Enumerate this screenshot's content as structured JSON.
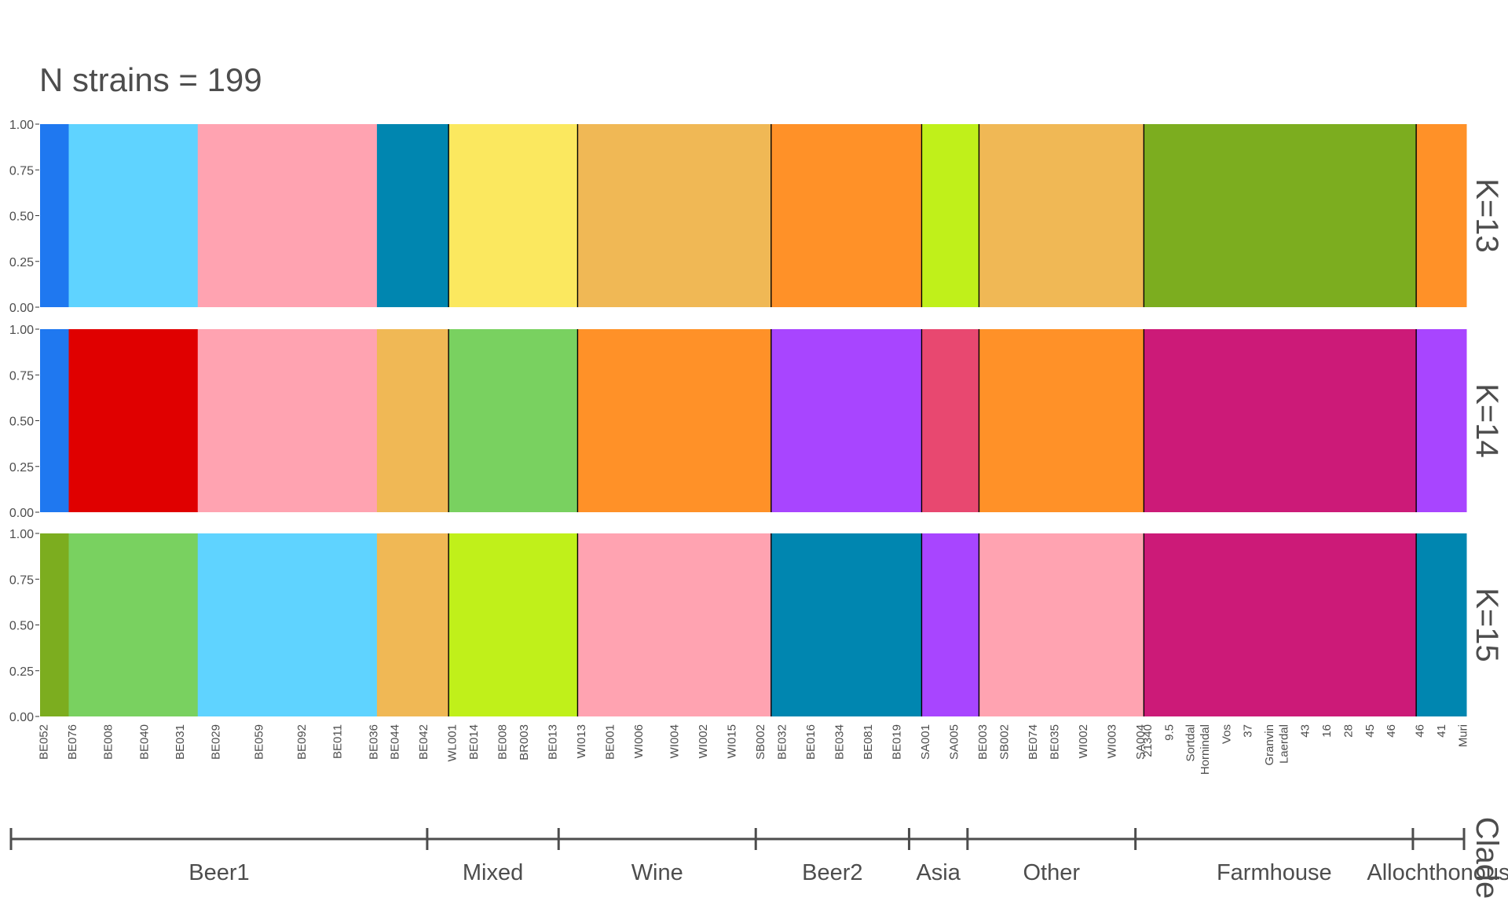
{
  "title": "N strains = 199",
  "chart_data": {
    "type": "bar",
    "subtype": "stacked-admixture",
    "n_strains": 199,
    "ylim": [
      0,
      1
    ],
    "yticks": [
      "0.00",
      "0.25",
      "0.50",
      "0.75",
      "1.00"
    ],
    "panels": [
      {
        "label": "K=13",
        "segments": [
          {
            "from": 0,
            "to": 4,
            "color": "#1f78f0"
          },
          {
            "from": 4,
            "to": 22,
            "color": "#5fd3ff"
          },
          {
            "from": 22,
            "to": 47,
            "color": "#ffa3b1"
          },
          {
            "from": 47,
            "to": 57,
            "color": "#0086b0"
          },
          {
            "from": 57,
            "to": 75,
            "color": "#fbe85f"
          },
          {
            "from": 75,
            "to": 102,
            "color": "#f0b855"
          },
          {
            "from": 102,
            "to": 123,
            "color": "#ff9128"
          },
          {
            "from": 123,
            "to": 131,
            "color": "#c0f01a"
          },
          {
            "from": 131,
            "to": 154,
            "color": "#f0b855"
          },
          {
            "from": 154,
            "to": 192,
            "color": "#7cad1f"
          },
          {
            "from": 192,
            "to": 199,
            "color": "#ff9128"
          }
        ]
      },
      {
        "label": "K=14",
        "segments": [
          {
            "from": 0,
            "to": 4,
            "color": "#1f78f0"
          },
          {
            "from": 4,
            "to": 22,
            "color": "#e00000"
          },
          {
            "from": 22,
            "to": 47,
            "color": "#ffa3b1"
          },
          {
            "from": 47,
            "to": 57,
            "color": "#f0b855"
          },
          {
            "from": 57,
            "to": 75,
            "color": "#79d160"
          },
          {
            "from": 75,
            "to": 102,
            "color": "#ff9128"
          },
          {
            "from": 102,
            "to": 123,
            "color": "#a845ff"
          },
          {
            "from": 123,
            "to": 131,
            "color": "#e84870"
          },
          {
            "from": 131,
            "to": 154,
            "color": "#ff9128"
          },
          {
            "from": 154,
            "to": 192,
            "color": "#cc1a78"
          },
          {
            "from": 192,
            "to": 199,
            "color": "#a845ff"
          }
        ]
      },
      {
        "label": "K=15",
        "segments": [
          {
            "from": 0,
            "to": 4,
            "color": "#7cad1f"
          },
          {
            "from": 4,
            "to": 22,
            "color": "#79d160"
          },
          {
            "from": 22,
            "to": 47,
            "color": "#5fd3ff"
          },
          {
            "from": 47,
            "to": 57,
            "color": "#f0b855"
          },
          {
            "from": 57,
            "to": 75,
            "color": "#c0f01a"
          },
          {
            "from": 75,
            "to": 102,
            "color": "#ffa3b1"
          },
          {
            "from": 102,
            "to": 123,
            "color": "#0086b0"
          },
          {
            "from": 123,
            "to": 131,
            "color": "#a845ff"
          },
          {
            "from": 131,
            "to": 154,
            "color": "#ffa3b1"
          },
          {
            "from": 154,
            "to": 192,
            "color": "#cc1a78"
          },
          {
            "from": 192,
            "to": 199,
            "color": "#0086b0"
          }
        ]
      }
    ],
    "clade_axis_label": "Clade",
    "clades": [
      {
        "name": "Beer1",
        "from": 0,
        "to": 57
      },
      {
        "name": "Mixed",
        "from": 57,
        "to": 75
      },
      {
        "name": "Wine",
        "from": 75,
        "to": 102
      },
      {
        "name": "Beer2",
        "from": 102,
        "to": 123
      },
      {
        "name": "Asia",
        "from": 123,
        "to": 131
      },
      {
        "name": "Other",
        "from": 131,
        "to": 154
      },
      {
        "name": "Farmhouse",
        "from": 154,
        "to": 192
      },
      {
        "name": "Allochthonous",
        "from": 192,
        "to": 199
      }
    ],
    "strain_labels": {
      "0": "BE052",
      "4": "BE076",
      "9": "BE008",
      "14": "BE040",
      "19": "BE031",
      "24": "BE029",
      "30": "BE059",
      "36": "BE092",
      "41": "BE011",
      "46": "BE036",
      "49": "BE044",
      "53": "BE042",
      "57": "WL001",
      "60": "BE014",
      "64": "BE008",
      "67": "BR003",
      "71": "BE013",
      "75": "WI013",
      "79": "BE001",
      "83": "WI006",
      "88": "WI004",
      "92": "WI002",
      "96": "WI015",
      "100": "SB002",
      "103": "BE032",
      "107": "BE016",
      "111": "BE034",
      "115": "BE081",
      "119": "BE019",
      "123": "SA001",
      "127": "SA005",
      "131": "BE003",
      "134": "SB002",
      "138": "BE074",
      "141": "BE035",
      "145": "WI002",
      "149": "WI003",
      "153": "SA004",
      "154": "21340",
      "157": "9.5",
      "160": "Sortdal",
      "162": "Hornindal",
      "165": "Vos",
      "168": "37",
      "171": "Granvin",
      "173": "Laerdal",
      "176": "43",
      "179": "16",
      "182": "28",
      "185": "45",
      "188": "46",
      "192": "46",
      "195": "41",
      "198": "Muri"
    }
  }
}
